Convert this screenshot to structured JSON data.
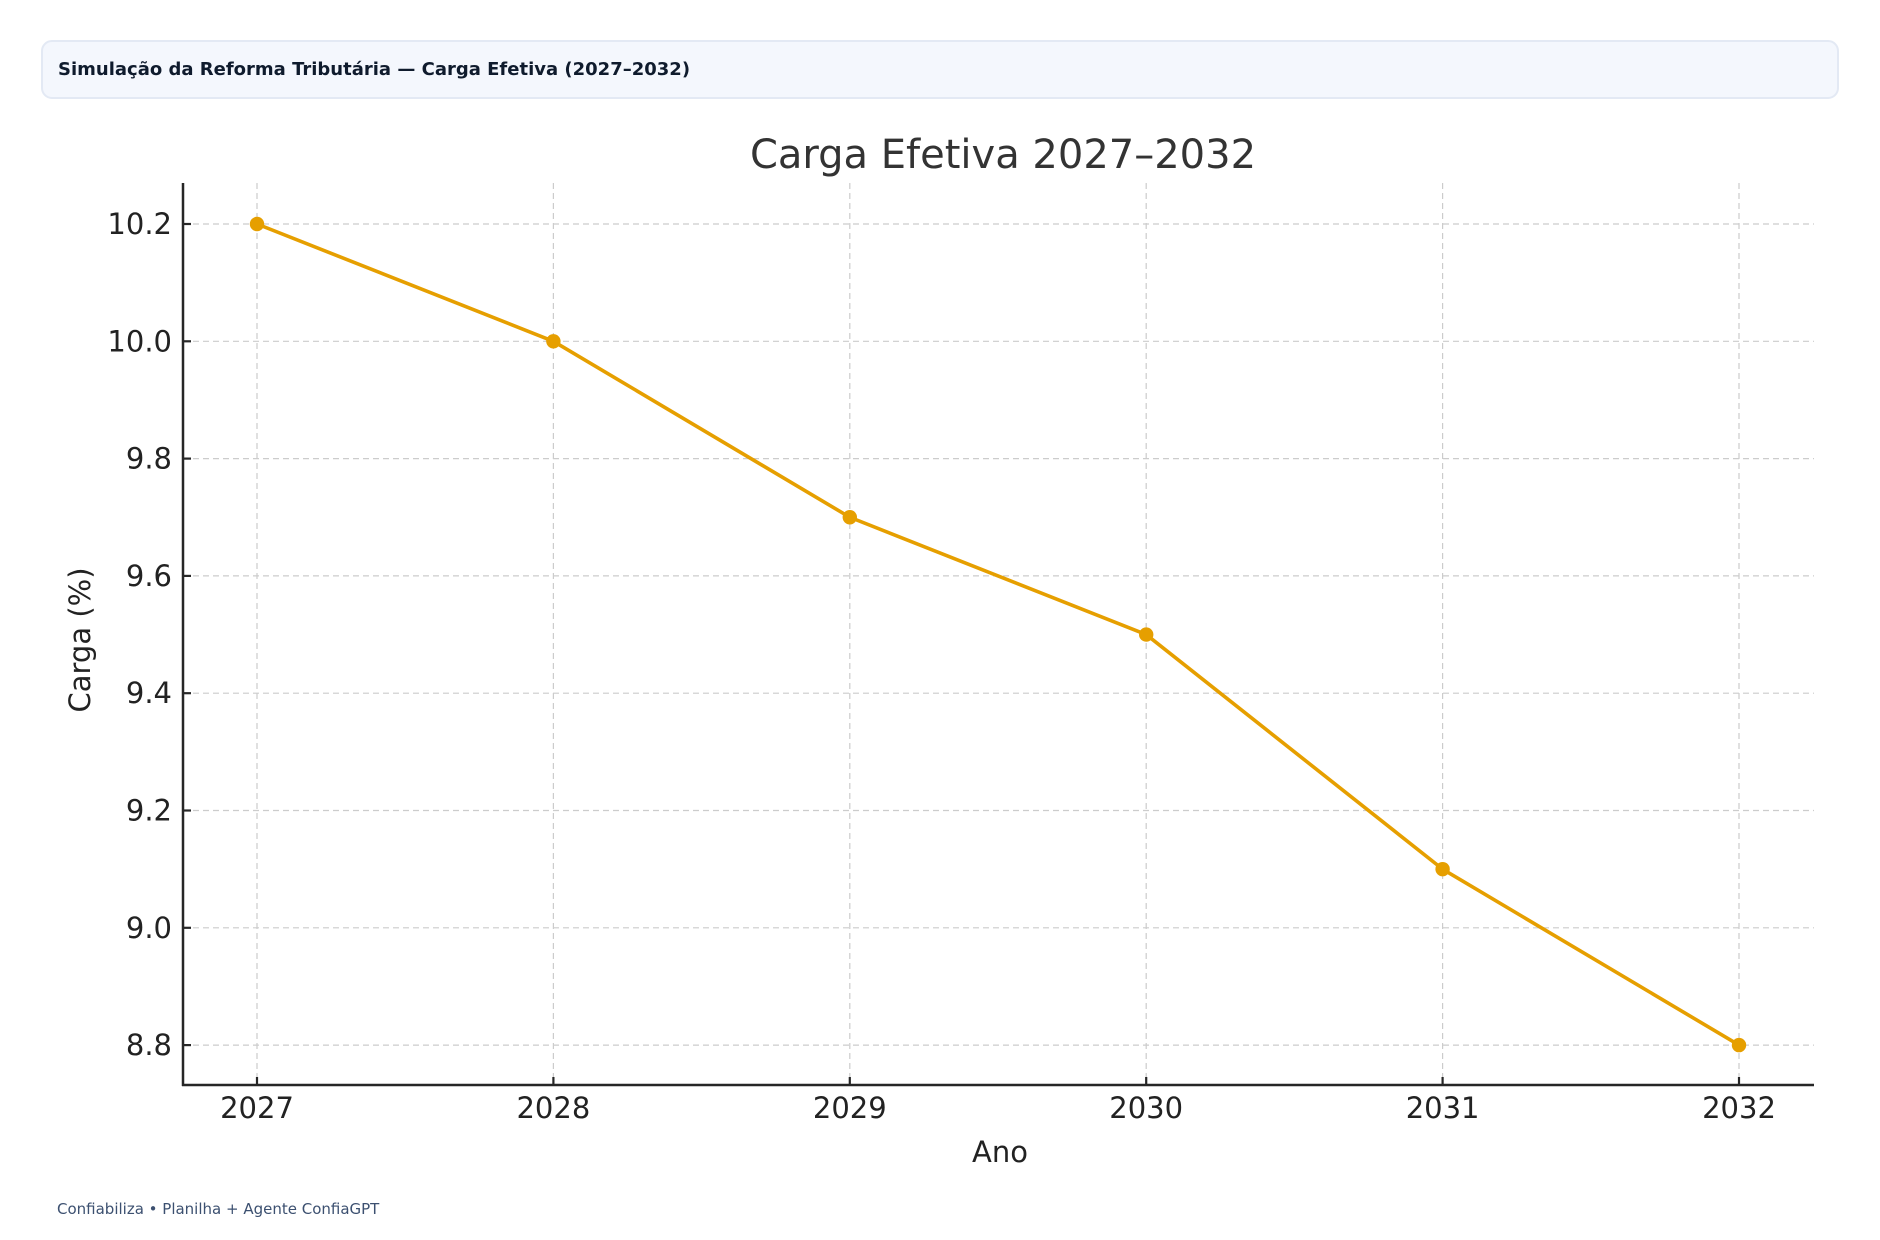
{
  "header": {
    "title": "Simulação da Reforma Tributária — Carga Efetiva (2027–2032)"
  },
  "footer": {
    "text": "Confiabiliza • Planilha + Agente ConfiaGPT"
  },
  "colors": {
    "line": "#E69F00",
    "axis": "#262626",
    "grid": "#cccccc",
    "text": "#222222",
    "title": "#333333",
    "header_bg": "#f4f7fd",
    "header_text": "#0f1b2d",
    "footer_text": "#3c5070"
  },
  "chart_data": {
    "type": "line",
    "title": "Carga Efetiva 2027–2032",
    "xlabel": "Ano",
    "ylabel": "Carga (%)",
    "categories": [
      "2027",
      "2028",
      "2029",
      "2030",
      "2031",
      "2032"
    ],
    "x": [
      2027,
      2028,
      2029,
      2030,
      2031,
      2032
    ],
    "series": [
      {
        "name": "Carga Efetiva",
        "values": [
          10.2,
          10.0,
          9.7,
          9.5,
          9.1,
          8.8
        ],
        "color": "#E69F00",
        "marker": "circle"
      }
    ],
    "yticks": [
      "8.8",
      "9.0",
      "9.2",
      "9.4",
      "9.6",
      "9.8",
      "10.0",
      "10.2"
    ],
    "ytick_values": [
      8.8,
      9.0,
      9.2,
      9.4,
      9.6,
      9.8,
      10.0,
      10.2
    ],
    "xticks": [
      "2027",
      "2028",
      "2029",
      "2030",
      "2031",
      "2032"
    ],
    "ylim": [
      8.73,
      10.27
    ],
    "xlim": [
      2026.75,
      2032.25
    ],
    "grid": true,
    "grid_style": "dashed",
    "legend": null
  }
}
